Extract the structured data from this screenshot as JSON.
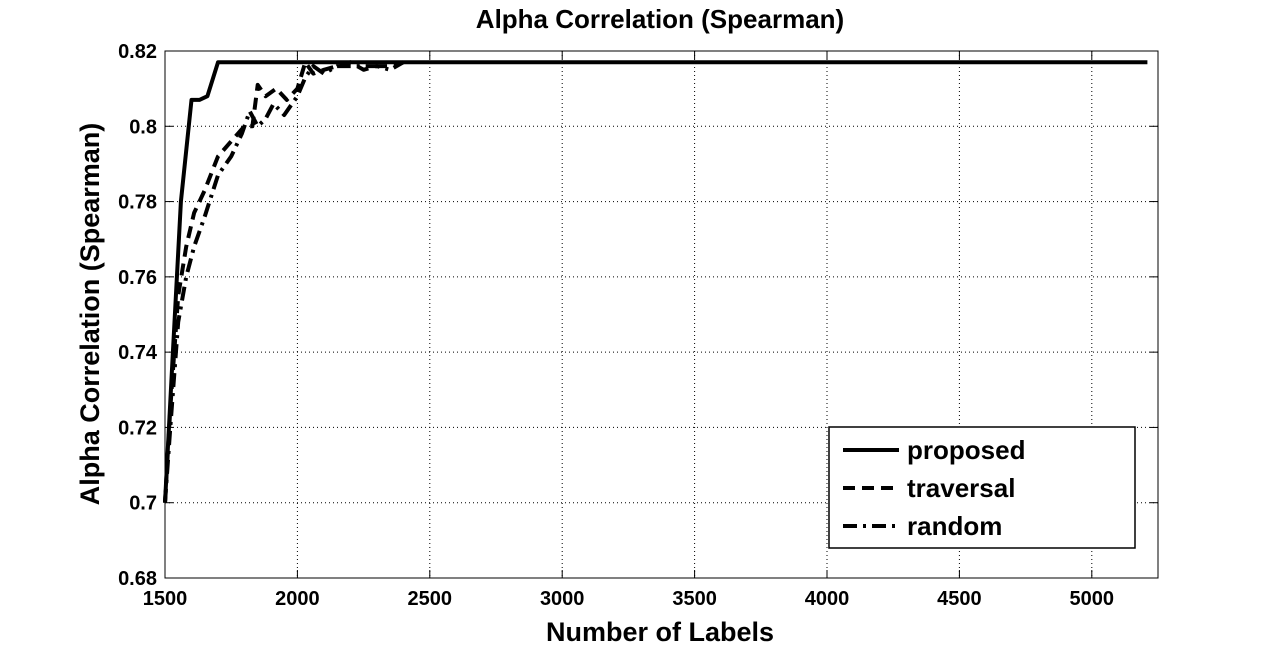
{
  "chart_data": {
    "type": "line",
    "title": "Alpha Correlation (Spearman)",
    "xlabel": "Number of Labels",
    "ylabel": "Alpha Correlation (Spearman)",
    "xlim": [
      1500,
      5250
    ],
    "ylim": [
      0.68,
      0.82
    ],
    "xticks": [
      1500,
      2000,
      2500,
      3000,
      3500,
      4000,
      4500,
      5000
    ],
    "yticks": [
      0.68,
      0.7,
      0.72,
      0.74,
      0.76,
      0.78,
      0.8,
      0.82
    ],
    "xtick_labels": [
      "1500",
      "2000",
      "2500",
      "3000",
      "3500",
      "4000",
      "4500",
      "5000"
    ],
    "ytick_labels": [
      "0.68",
      "0.7",
      "0.72",
      "0.74",
      "0.76",
      "0.78",
      "0.8",
      "0.82"
    ],
    "grid": true,
    "legend_position": "bottom-right",
    "series": [
      {
        "name": "proposed",
        "style": "solid",
        "x": [
          1500,
          1530,
          1560,
          1600,
          1630,
          1660,
          1700,
          1750,
          2000,
          3000,
          4000,
          5000,
          5210
        ],
        "y": [
          0.7,
          0.74,
          0.78,
          0.807,
          0.807,
          0.808,
          0.817,
          0.817,
          0.817,
          0.817,
          0.817,
          0.817,
          0.817
        ]
      },
      {
        "name": "traversal",
        "style": "dashed",
        "x": [
          1500,
          1520,
          1550,
          1580,
          1610,
          1650,
          1700,
          1750,
          1800,
          1830,
          1850,
          1880,
          1920,
          1960,
          2000,
          2030,
          2060,
          2100,
          2150,
          2200,
          2250,
          2300,
          2350,
          2400
        ],
        "y": [
          0.7,
          0.725,
          0.755,
          0.768,
          0.777,
          0.783,
          0.792,
          0.796,
          0.8,
          0.8,
          0.811,
          0.808,
          0.81,
          0.807,
          0.81,
          0.817,
          0.814,
          0.815,
          0.816,
          0.817,
          0.815,
          0.816,
          0.816,
          0.817
        ]
      },
      {
        "name": "random",
        "style": "dashdot",
        "x": [
          1500,
          1520,
          1550,
          1580,
          1610,
          1650,
          1700,
          1750,
          1790,
          1820,
          1850,
          1880,
          1910,
          1950,
          2000,
          2030,
          2060,
          2100,
          2150,
          2200,
          2250,
          2300,
          2350,
          2400
        ],
        "y": [
          0.7,
          0.72,
          0.748,
          0.76,
          0.768,
          0.776,
          0.787,
          0.792,
          0.798,
          0.804,
          0.8,
          0.802,
          0.806,
          0.803,
          0.808,
          0.813,
          0.816,
          0.814,
          0.816,
          0.816,
          0.816,
          0.816,
          0.815,
          0.817
        ]
      }
    ]
  }
}
